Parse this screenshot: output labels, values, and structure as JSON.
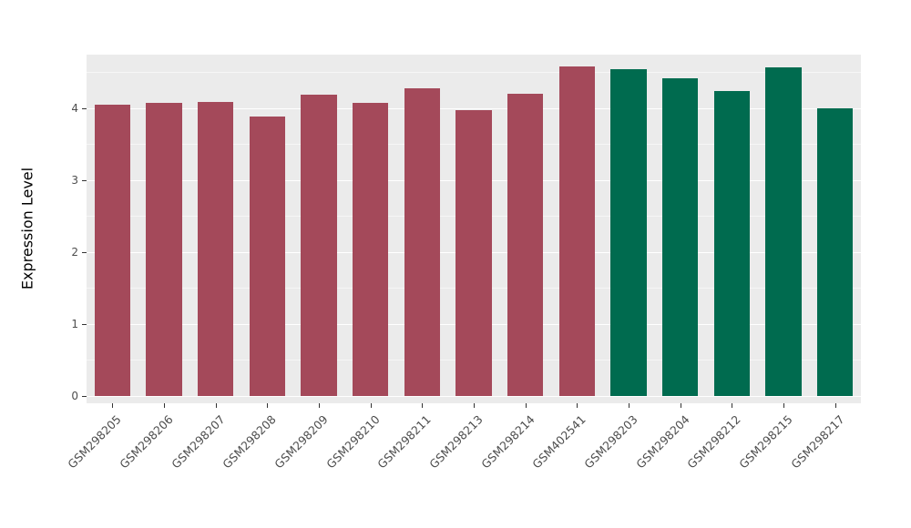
{
  "chart": {
    "panel_background": "#EBEBEB",
    "figure_background": "#FFFFFF",
    "grid_major_color": "#FFFFFF",
    "grid_minor_color": "#F5F5F5",
    "tick_color": "#333333",
    "tick_label_color": "#4D4D4D"
  },
  "chart_data": {
    "type": "bar",
    "title": "",
    "xlabel": "",
    "ylabel": "Expression Level",
    "categories": [
      "GSM298205",
      "GSM298206",
      "GSM298207",
      "GSM298208",
      "GSM298209",
      "GSM298210",
      "GSM298211",
      "GSM298213",
      "GSM298214",
      "GSM402541",
      "GSM298203",
      "GSM298204",
      "GSM298212",
      "GSM298215",
      "GSM298217"
    ],
    "values": [
      4.04,
      4.07,
      4.08,
      3.88,
      4.18,
      4.07,
      4.27,
      3.97,
      4.2,
      4.58,
      4.54,
      4.41,
      4.23,
      4.56,
      4.0
    ],
    "group_index": [
      0,
      0,
      0,
      0,
      0,
      0,
      0,
      0,
      0,
      0,
      1,
      1,
      1,
      1,
      1
    ],
    "group_colors": [
      "#A4495A",
      "#006B4F"
    ],
    "yticks": [
      0,
      1,
      2,
      3,
      4
    ],
    "ylim": [
      0,
      4.74
    ],
    "grid": "on",
    "legend": "none",
    "bar_width_fraction": 0.7,
    "x_label_angle_deg": 45
  }
}
